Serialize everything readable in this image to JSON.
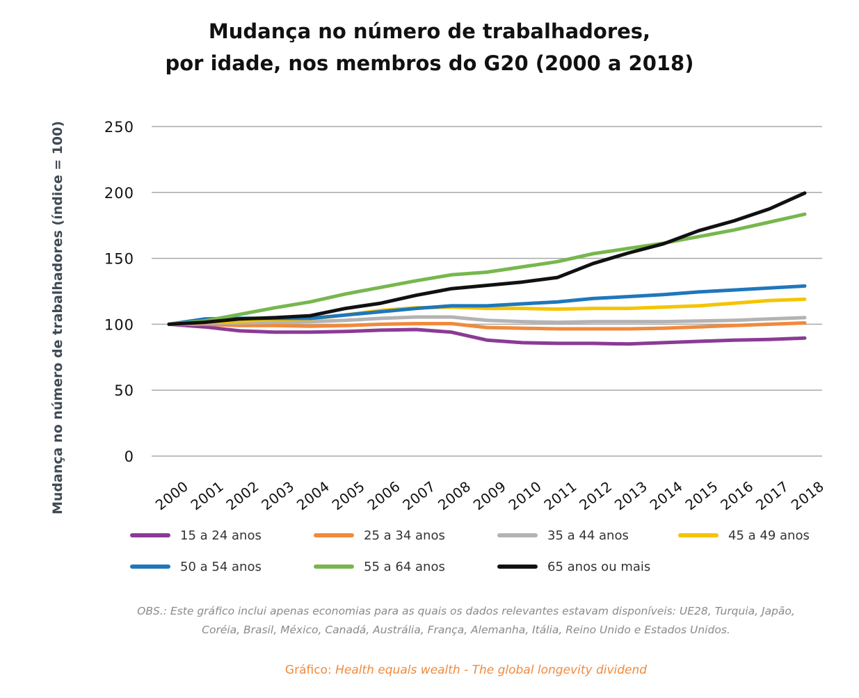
{
  "chart_data": {
    "type": "line",
    "title_line1": "Mudança no número de trabalhadores,",
    "title_line2": "por idade, nos membros do G20 (2000 a 2018)",
    "ylabel": "Mudança no número de trabalhadores (índice = 100)",
    "xlabel": "",
    "ylim": [
      0,
      250
    ],
    "yticks": [
      0,
      50,
      100,
      150,
      200,
      250
    ],
    "grid": true,
    "legend_position": "bottom",
    "x": [
      "2000",
      "2001",
      "2002",
      "2003",
      "2004",
      "2005",
      "2006",
      "2007",
      "2008",
      "2009",
      "2010",
      "2011",
      "2012",
      "2013",
      "2014",
      "2015",
      "2016",
      "2017",
      "2018"
    ],
    "series": [
      {
        "name": "15 a 24 anos",
        "color": "#8b3a96",
        "values": [
          100,
          98,
          95,
          94,
          94,
          94.5,
          95.5,
          96,
          94,
          88,
          86,
          85.5,
          85.5,
          85,
          86,
          87,
          88,
          88.5,
          89.5
        ]
      },
      {
        "name": "25 a 34 anos",
        "color": "#f08a3c",
        "values": [
          100,
          100,
          99,
          99,
          98.5,
          99,
          100,
          100.5,
          100.5,
          97.5,
          97,
          96.5,
          96.5,
          96.5,
          97,
          98,
          99,
          100,
          101
        ]
      },
      {
        "name": "35 a 44 anos",
        "color": "#b3b3b3",
        "values": [
          100,
          101,
          101,
          101.5,
          102,
          103,
          104.5,
          105.5,
          105.5,
          103,
          102,
          101.5,
          102,
          102,
          102,
          102.5,
          103,
          104,
          105
        ]
      },
      {
        "name": "45 a 49 anos",
        "color": "#f5c400",
        "values": [
          100,
          101.5,
          102.5,
          103.5,
          104,
          107,
          110.5,
          112.5,
          113,
          112,
          112,
          111.5,
          112,
          112,
          113,
          114,
          116,
          118,
          119
        ]
      },
      {
        "name": "50 a 54 anos",
        "color": "#1f77bb",
        "values": [
          100,
          104,
          104.5,
          104.5,
          104.5,
          107,
          109.5,
          112,
          114,
          114,
          115.5,
          117,
          119.5,
          121,
          122.5,
          124.5,
          126,
          127.5,
          129
        ]
      },
      {
        "name": "55 a 64 anos",
        "color": "#77b74e",
        "values": [
          100,
          102.5,
          107.5,
          112.5,
          117,
          123,
          128,
          133,
          137.5,
          139.5,
          143.5,
          147.5,
          153.5,
          157.5,
          161.5,
          166.5,
          171.5,
          177.5,
          183.5
        ]
      },
      {
        "name": "65 anos ou mais",
        "color": "#111111",
        "values": [
          100,
          101.5,
          104,
          105,
          106.5,
          112,
          116,
          122,
          127,
          129.5,
          132,
          135.5,
          146,
          154,
          161,
          171,
          178.5,
          187.5,
          199.5
        ]
      }
    ]
  },
  "note": {
    "line1": "OBS.: Este gráfico inclui apenas economias para as quais os dados relevantes estavam disponíveis: UE28, Turquia, Japão,",
    "line2": "Coréia, Brasil, México, Canadá, Austrália, França, Alemanha, Itália, Reino Unido e Estados Unidos."
  },
  "source": {
    "prefix": "Gráfico: ",
    "title": "Health equals wealth - The global longevity dividend"
  }
}
